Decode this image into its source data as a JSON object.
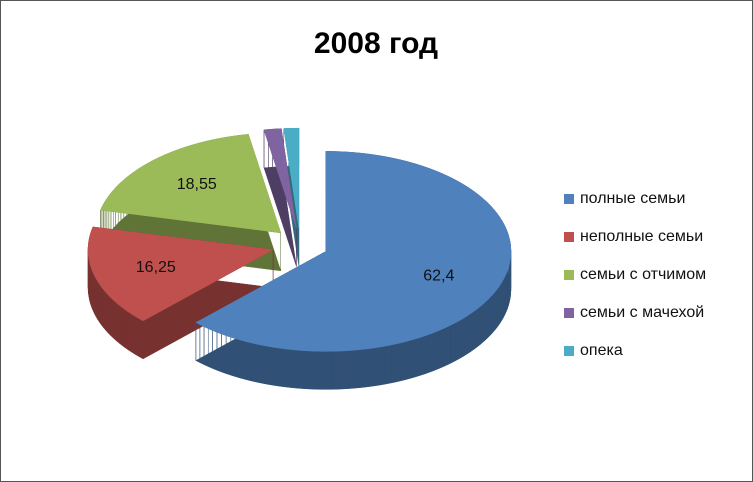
{
  "chart_data": {
    "type": "pie3d",
    "title": "2008 год",
    "categories": [
      "полные семьи",
      "неполные семьи",
      "семьи с отчимом",
      "семьи с мачехой",
      "опека"
    ],
    "values": [
      62.4,
      16.25,
      18.55,
      1.5,
      1.3
    ],
    "value_labels": [
      "62,4",
      "16,25",
      "18,55",
      null,
      null
    ],
    "colors": [
      "#4f81bd",
      "#c0504d",
      "#9bbb59",
      "#8064a2",
      "#4bacc6"
    ],
    "legend": "right"
  }
}
